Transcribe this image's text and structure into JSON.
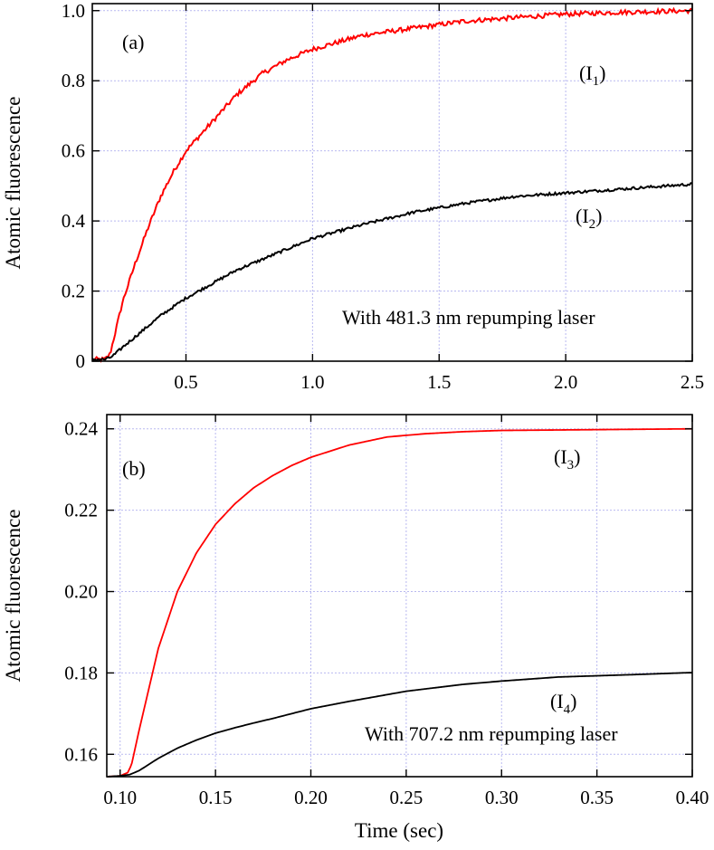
{
  "chart_data": [
    {
      "type": "line",
      "panel_label": "(a)",
      "xlim": [
        0.13,
        2.5
      ],
      "ylim": [
        0,
        1.02
      ],
      "xticks": [
        "0.5",
        "1.0",
        "1.5",
        "2.0",
        "2.5"
      ],
      "xtick_values": [
        0.5,
        1.0,
        1.5,
        2.0,
        2.5
      ],
      "yticks": [
        "0",
        "0.2",
        "0.4",
        "0.6",
        "0.8",
        "1.0"
      ],
      "ytick_values": [
        0,
        0.2,
        0.4,
        0.6,
        0.8,
        1.0
      ],
      "ylabel": "Atomic fluorescence",
      "xlabel": "",
      "grid": true,
      "annotation": "With 481.3 nm repumping laser",
      "series": [
        {
          "label_base": "I",
          "label_sub": "1",
          "color": "#ff0000",
          "x": [
            0.13,
            0.18,
            0.2,
            0.22,
            0.25,
            0.3,
            0.35,
            0.4,
            0.45,
            0.5,
            0.6,
            0.7,
            0.8,
            0.9,
            1.0,
            1.1,
            1.2,
            1.4,
            1.6,
            1.8,
            2.0,
            2.2,
            2.5
          ],
          "y": [
            0.005,
            0.005,
            0.02,
            0.08,
            0.17,
            0.28,
            0.38,
            0.47,
            0.54,
            0.6,
            0.68,
            0.76,
            0.82,
            0.86,
            0.89,
            0.91,
            0.93,
            0.95,
            0.97,
            0.98,
            0.99,
            0.995,
            1.0
          ]
        },
        {
          "label_base": "I",
          "label_sub": "2",
          "color": "#000000",
          "x": [
            0.13,
            0.18,
            0.2,
            0.22,
            0.25,
            0.3,
            0.4,
            0.5,
            0.6,
            0.7,
            0.8,
            0.9,
            1.0,
            1.2,
            1.4,
            1.6,
            1.8,
            2.0,
            2.2,
            2.5
          ],
          "y": [
            0.005,
            0.005,
            0.01,
            0.02,
            0.04,
            0.07,
            0.13,
            0.18,
            0.22,
            0.26,
            0.29,
            0.32,
            0.35,
            0.39,
            0.425,
            0.45,
            0.47,
            0.48,
            0.49,
            0.505
          ]
        }
      ]
    },
    {
      "type": "line",
      "panel_label": "(b)",
      "xlim": [
        0.093,
        0.4
      ],
      "ylim": [
        0.1545,
        0.2435
      ],
      "xticks": [
        "0.10",
        "0.15",
        "0.20",
        "0.25",
        "0.30",
        "0.35",
        "0.40"
      ],
      "xtick_values": [
        0.1,
        0.15,
        0.2,
        0.25,
        0.3,
        0.35,
        0.4
      ],
      "yticks": [
        "0.16",
        "0.18",
        "0.20",
        "0.22",
        "0.24"
      ],
      "ytick_values": [
        0.16,
        0.18,
        0.2,
        0.22,
        0.24
      ],
      "ylabel": "Atomic fluorescence",
      "xlabel": "Time (sec)",
      "grid": true,
      "annotation": "With 707.2 nm repumping laser",
      "series": [
        {
          "label_base": "I",
          "label_sub": "3",
          "color": "#ff0000",
          "x": [
            0.093,
            0.1,
            0.104,
            0.106,
            0.11,
            0.115,
            0.12,
            0.13,
            0.14,
            0.15,
            0.16,
            0.17,
            0.18,
            0.19,
            0.2,
            0.22,
            0.24,
            0.26,
            0.28,
            0.3,
            0.35,
            0.4
          ],
          "y": [
            0.1545,
            0.1547,
            0.1555,
            0.1575,
            0.166,
            0.176,
            0.186,
            0.2,
            0.2095,
            0.2165,
            0.2215,
            0.2255,
            0.2285,
            0.231,
            0.233,
            0.236,
            0.238,
            0.2388,
            0.2393,
            0.2396,
            0.2398,
            0.24
          ]
        },
        {
          "label_base": "I",
          "label_sub": "4",
          "color": "#000000",
          "x": [
            0.093,
            0.1,
            0.105,
            0.11,
            0.12,
            0.13,
            0.14,
            0.15,
            0.16,
            0.17,
            0.18,
            0.2,
            0.22,
            0.25,
            0.28,
            0.3,
            0.33,
            0.35,
            0.37,
            0.4
          ],
          "y": [
            0.1545,
            0.1547,
            0.155,
            0.156,
            0.159,
            0.1615,
            0.1635,
            0.1652,
            0.1665,
            0.1677,
            0.1688,
            0.1712,
            0.173,
            0.1755,
            0.1772,
            0.178,
            0.179,
            0.1793,
            0.1796,
            0.1801
          ]
        }
      ]
    }
  ]
}
